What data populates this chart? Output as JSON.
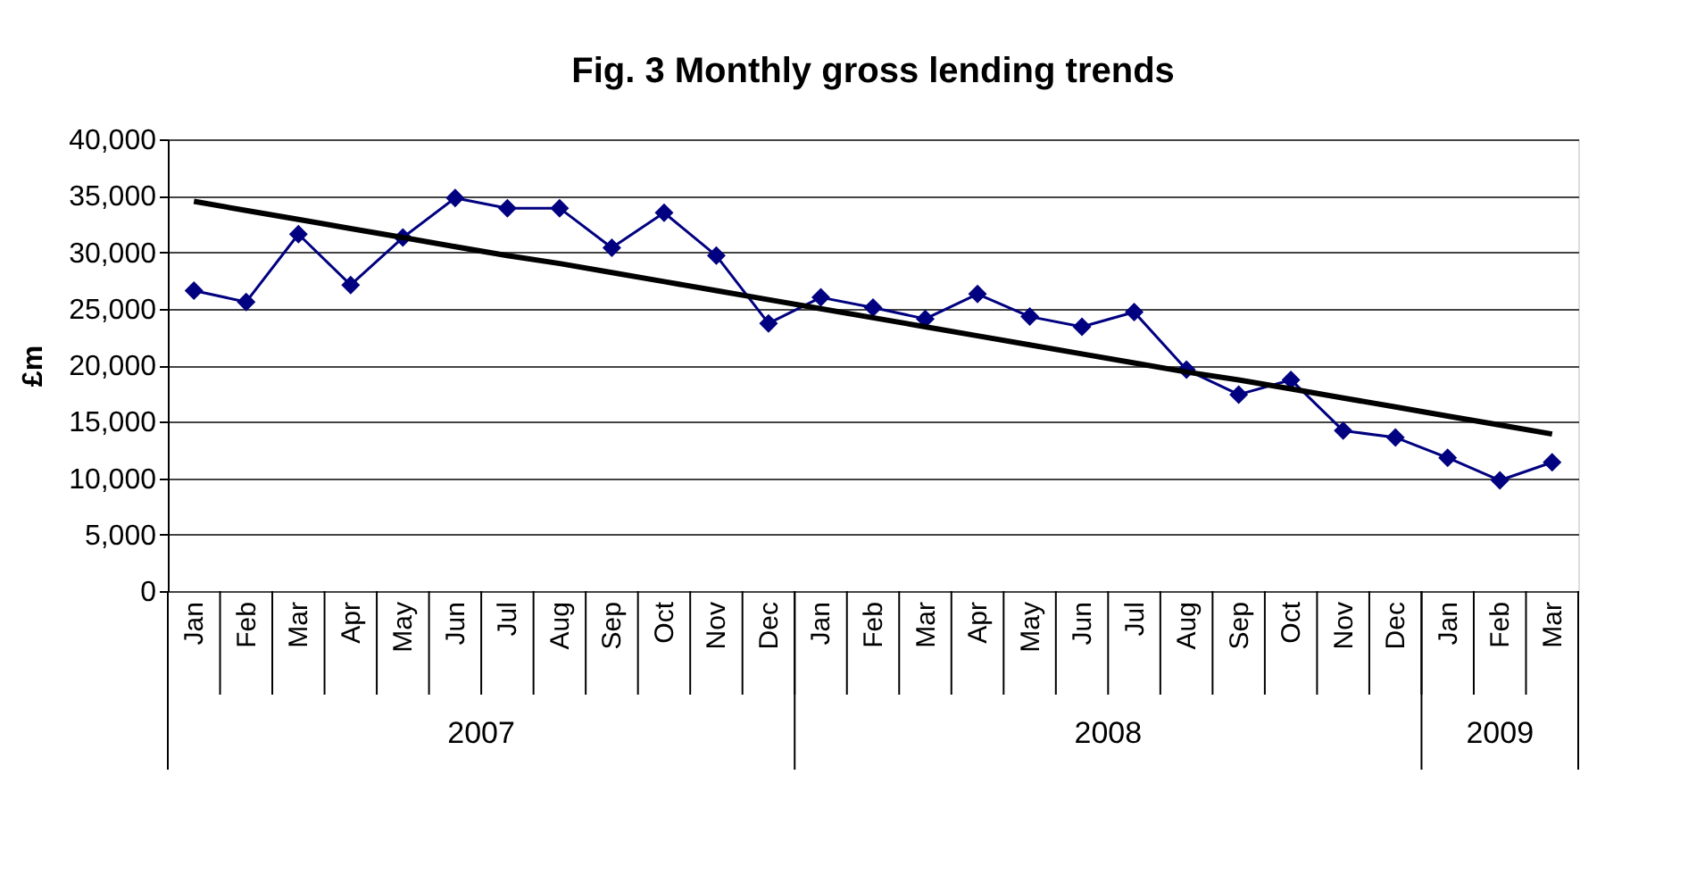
{
  "chart_data": {
    "type": "line",
    "title": "Fig. 3 Monthly gross lending trends",
    "ylabel": "£m",
    "categories": [
      "Jan",
      "Feb",
      "Mar",
      "Apr",
      "May",
      "Jun",
      "Jul",
      "Aug",
      "Sep",
      "Oct",
      "Nov",
      "Dec",
      "Jan",
      "Feb",
      "Mar",
      "Apr",
      "May",
      "Jun",
      "Jul",
      "Aug",
      "Sep",
      "Oct",
      "Nov",
      "Dec",
      "Jan",
      "Feb",
      "Mar"
    ],
    "series": [
      {
        "color": "#000080",
        "marker": "diamond",
        "values": [
          26600,
          25600,
          31600,
          27100,
          31300,
          34800,
          33900,
          33900,
          30400,
          33500,
          29700,
          23700,
          26000,
          25100,
          24100,
          26300,
          24300,
          23400,
          24700,
          19600,
          17400,
          18700,
          14200,
          13600,
          11800,
          9800,
          11400
        ]
      },
      {
        "color": "#000000",
        "marker": "none",
        "values": [
          34500,
          33700,
          32900,
          32100,
          31300,
          30500,
          29700,
          29000,
          28200,
          27400,
          26600,
          25800,
          25000,
          24200,
          23400,
          22600,
          21800,
          21000,
          20200,
          19400,
          18700,
          17900,
          17100,
          16300,
          15500,
          14700,
          13900
        ]
      }
    ],
    "annotations": [
      "2007",
      "2008",
      "2009"
    ],
    "ylim": [
      0,
      40000
    ],
    "yticks": [
      0,
      {
        "value": 5000,
        "label": "5,000"
      },
      {
        "value": 10000,
        "label": "10,000"
      },
      {
        "value": 15000,
        "label": "15,000"
      },
      {
        "value": 20000,
        "label": "20,000"
      },
      {
        "value": 25000,
        "label": "25,000"
      },
      {
        "value": 30000,
        "label": "30,000"
      },
      {
        "value": 35000,
        "label": "35,000"
      },
      {
        "value": 40000,
        "label": "40,000"
      }
    ],
    "grid": "y"
  }
}
